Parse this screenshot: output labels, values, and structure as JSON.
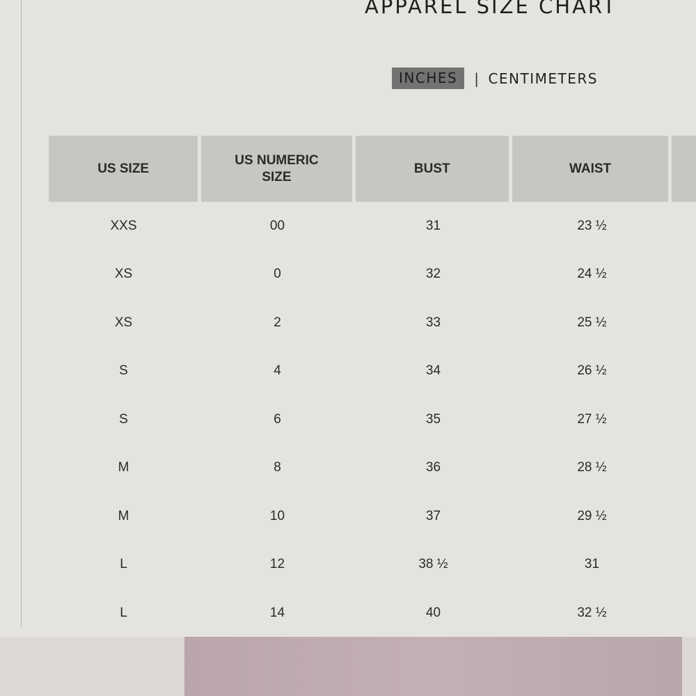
{
  "page_title": "APPAREL SIZE CHART",
  "units": {
    "active": "INCHES",
    "separator": "|",
    "other": "CENTIMETERS"
  },
  "table": {
    "headers": [
      "US SIZE",
      "US NUMERIC SIZE",
      "BUST",
      "WAIST",
      ""
    ],
    "rows": [
      [
        "XXS",
        "00",
        "31",
        "23 ½"
      ],
      [
        "XS",
        "0",
        "32",
        "24 ½"
      ],
      [
        "XS",
        "2",
        "33",
        "25 ½"
      ],
      [
        "S",
        "4",
        "34",
        "26 ½"
      ],
      [
        "S",
        "6",
        "35",
        "27 ½"
      ],
      [
        "M",
        "8",
        "36",
        "28 ½"
      ],
      [
        "M",
        "10",
        "37",
        "29 ½"
      ],
      [
        "L",
        "12",
        "38 ½",
        "31"
      ],
      [
        "L",
        "14",
        "40",
        "32 ½"
      ]
    ]
  },
  "colors": {
    "header_bg": "#c8c6c1",
    "active_unit_bg": "#737471",
    "page_bg": "#e4e3df"
  }
}
